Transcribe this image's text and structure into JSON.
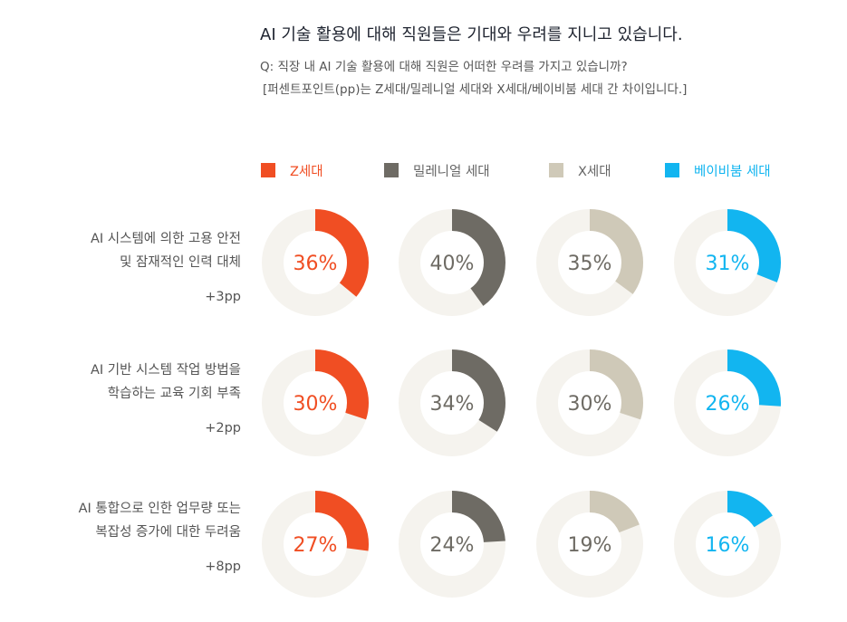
{
  "header": {
    "title": "AI 기술 활용에 대해 직원들은 기대와 우려를 지니고 있습니다.",
    "question": "Q: 직장 내 AI 기술 활용에 대해 직원은 어떠한 우려를 가지고 있습니까?",
    "note": "[퍼센트포인트(pp)는 Z세대/밀레니얼 세대와 X세대/베이비붐 세대 간 차이입니다.]"
  },
  "chart_data": {
    "type": "donut-grid",
    "series": [
      {
        "name": "Z세대",
        "color": "#F04E23"
      },
      {
        "name": "밀레니얼 세대",
        "color": "#6E6B64"
      },
      {
        "name": "X세대",
        "color": "#CFC9B8"
      },
      {
        "name": "베이비붐 세대",
        "color": "#12B5F0"
      }
    ],
    "track_color": "#F5F3EE",
    "rows": [
      {
        "label_lines": [
          "AI 시스템에 의한 고용 안전",
          "및 잠재적인 인력 대체"
        ],
        "pp": "+3pp",
        "values": [
          36,
          40,
          35,
          31
        ],
        "value_labels": [
          "36%",
          "40%",
          "35%",
          "31%"
        ]
      },
      {
        "label_lines": [
          "AI 기반 시스템 작업 방법을",
          "학습하는 교육 기회 부족"
        ],
        "pp": "+2pp",
        "values": [
          30,
          34,
          30,
          26
        ],
        "value_labels": [
          "30%",
          "34%",
          "30%",
          "26%"
        ]
      },
      {
        "label_lines": [
          "AI 통합으로 인한 업무량 또는",
          "복잡성 증가에 대한 두려움"
        ],
        "pp": "+8pp",
        "values": [
          27,
          24,
          19,
          16
        ],
        "value_labels": [
          "27%",
          "24%",
          "19%",
          "16%"
        ]
      }
    ]
  }
}
